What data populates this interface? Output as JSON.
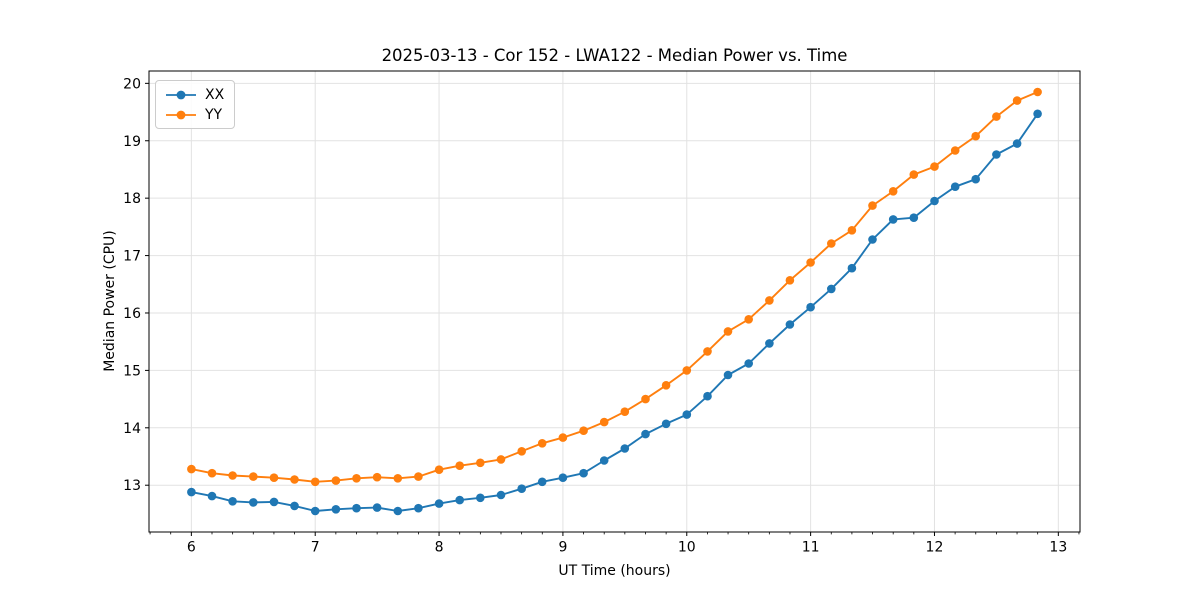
{
  "chart_data": {
    "type": "line",
    "title": "2025-03-13 - Cor 152 - LWA122 - Median Power vs. Time",
    "xlabel": "UT Time (hours)",
    "ylabel": "Median Power (CPU)",
    "xlim": [
      5.658,
      13.175
    ],
    "ylim": [
      12.185,
      20.215
    ],
    "xticks": [
      6,
      7,
      8,
      9,
      10,
      11,
      12,
      13
    ],
    "yticks": [
      13,
      14,
      15,
      16,
      17,
      18,
      19,
      20
    ],
    "x_minor_step_hours": 0.1667,
    "grid": true,
    "legend_position": "upper-left",
    "x": [
      6.0,
      6.167,
      6.333,
      6.5,
      6.667,
      6.833,
      7.0,
      7.167,
      7.333,
      7.5,
      7.667,
      7.833,
      8.0,
      8.167,
      8.333,
      8.5,
      8.667,
      8.833,
      9.0,
      9.167,
      9.333,
      9.5,
      9.667,
      9.833,
      10.0,
      10.167,
      10.333,
      10.5,
      10.667,
      10.833,
      11.0,
      11.167,
      11.333,
      11.5,
      11.667,
      11.833,
      12.0,
      12.167,
      12.333,
      12.5,
      12.667,
      12.833
    ],
    "series": [
      {
        "name": "XX",
        "color": "#1f77b4",
        "values": [
          12.88,
          12.81,
          12.72,
          12.7,
          12.71,
          12.64,
          12.55,
          12.58,
          12.6,
          12.61,
          12.55,
          12.6,
          12.68,
          12.74,
          12.78,
          12.83,
          12.94,
          13.06,
          13.13,
          13.21,
          13.43,
          13.64,
          13.89,
          14.07,
          14.23,
          14.55,
          14.92,
          15.12,
          15.47,
          15.8,
          16.1,
          16.42,
          16.78,
          17.28,
          17.63,
          17.66,
          17.95,
          18.2,
          18.33,
          18.76,
          18.95,
          19.47
        ]
      },
      {
        "name": "YY",
        "color": "#ff7f0e",
        "values": [
          13.28,
          13.21,
          13.17,
          13.15,
          13.13,
          13.1,
          13.06,
          13.08,
          13.12,
          13.14,
          13.12,
          13.15,
          13.27,
          13.34,
          13.39,
          13.45,
          13.59,
          13.73,
          13.83,
          13.95,
          14.1,
          14.28,
          14.5,
          14.74,
          15.0,
          15.33,
          15.68,
          15.89,
          16.22,
          16.57,
          16.88,
          17.21,
          17.44,
          17.87,
          18.12,
          18.41,
          18.55,
          18.83,
          19.08,
          19.42,
          19.7,
          19.85
        ]
      }
    ],
    "styles": {
      "grid_color": "#e2e2e2",
      "spine_color": "#000000",
      "text_color": "#000000",
      "background": "#ffffff"
    }
  }
}
